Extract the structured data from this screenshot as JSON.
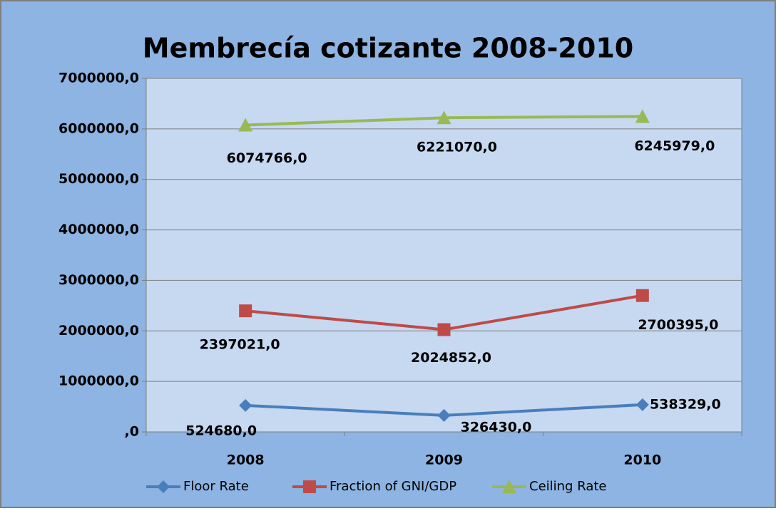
{
  "chart_data": {
    "type": "line",
    "title": "Membrecía cotizante 2008-2010",
    "categories": [
      "2008",
      "2009",
      "2010"
    ],
    "series": [
      {
        "name": "Floor Rate",
        "color": "#4a7ebb",
        "marker": "diamond",
        "values": [
          524680,
          326430,
          538329
        ],
        "value_labels": [
          "524680,0",
          "326430,0",
          "538329,0"
        ]
      },
      {
        "name": "Fraction of GNI/GDP",
        "color": "#be4b48",
        "marker": "square",
        "values": [
          2397021,
          2024852,
          2700395
        ],
        "value_labels": [
          "2397021,0",
          "2024852,0",
          "2700395,0"
        ]
      },
      {
        "name": "Ceiling Rate",
        "color": "#98b954",
        "marker": "triangle",
        "values": [
          6074766,
          6221070,
          6245979
        ],
        "value_labels": [
          "6074766,0",
          "6221070,0",
          "6245979,0"
        ]
      }
    ],
    "ylim": [
      0,
      7000000
    ],
    "yticks": [
      {
        "value": 0,
        "label": ",0"
      },
      {
        "value": 1000000,
        "label": "1000000,0"
      },
      {
        "value": 2000000,
        "label": "2000000,0"
      },
      {
        "value": 3000000,
        "label": "3000000,0"
      },
      {
        "value": 4000000,
        "label": "4000000,0"
      },
      {
        "value": 5000000,
        "label": "5000000,0"
      },
      {
        "value": 6000000,
        "label": "6000000,0"
      },
      {
        "value": 7000000,
        "label": "7000000,0"
      }
    ],
    "grid": true,
    "legend": "bottom"
  }
}
